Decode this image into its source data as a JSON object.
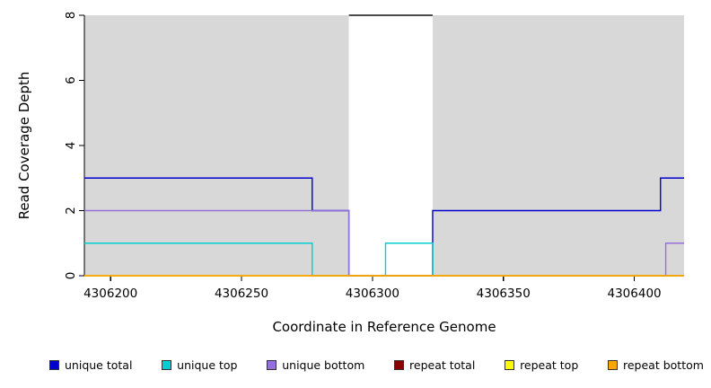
{
  "figure": {
    "background": "#ffffff"
  },
  "chart_data": {
    "type": "line",
    "title": "",
    "xlabel": "Coordinate in Reference Genome",
    "ylabel": "Read Coverage Depth",
    "xlim": [
      4306190,
      4306419
    ],
    "ylim": [
      0,
      8
    ],
    "x_ticks": [
      "4306200",
      "4306250",
      "4306300",
      "4306350",
      "4306400"
    ],
    "x_tick_values": [
      4306200,
      4306250,
      4306300,
      4306350,
      4306400
    ],
    "y_ticks": [
      "0",
      "2",
      "4",
      "6",
      "8"
    ],
    "y_tick_values": [
      0,
      2,
      4,
      6,
      8
    ],
    "grid": false,
    "legend_position": "bottom",
    "axis_color": "#000000",
    "panel": {
      "shaded_color": "#d8d8d8",
      "shaded_regions": [
        [
          4306190,
          4306291
        ],
        [
          4306323,
          4306419
        ]
      ],
      "gap_region": [
        4306291,
        4306323
      ],
      "gap_top_border_color": "#111111"
    },
    "series": [
      {
        "name": "unique total",
        "color": "#0000cd",
        "points": [
          [
            4306190,
            3
          ],
          [
            4306277,
            3
          ],
          [
            4306277,
            2
          ],
          [
            4306291,
            2
          ],
          [
            4306291,
            0
          ],
          [
            4306323,
            0
          ],
          [
            4306323,
            2
          ],
          [
            4306410,
            2
          ],
          [
            4306410,
            3
          ],
          [
            4306419,
            3
          ]
        ]
      },
      {
        "name": "unique top",
        "color": "#00ced1",
        "points": [
          [
            4306190,
            1
          ],
          [
            4306277,
            1
          ],
          [
            4306277,
            0
          ],
          [
            4306305,
            0
          ],
          [
            4306305,
            1
          ],
          [
            4306323,
            1
          ],
          [
            4306323,
            0
          ],
          [
            4306419,
            0
          ]
        ]
      },
      {
        "name": "unique bottom",
        "color": "#9370db",
        "points": [
          [
            4306190,
            2
          ],
          [
            4306291,
            2
          ],
          [
            4306291,
            0
          ],
          [
            4306412,
            0
          ],
          [
            4306412,
            1
          ],
          [
            4306419,
            1
          ]
        ]
      },
      {
        "name": "repeat total",
        "color": "#8b0000",
        "points": [
          [
            4306190,
            0
          ],
          [
            4306419,
            0
          ]
        ]
      },
      {
        "name": "repeat top",
        "color": "#ffff00",
        "points": [
          [
            4306190,
            0
          ],
          [
            4306419,
            0
          ]
        ]
      },
      {
        "name": "repeat bottom",
        "color": "#ffa500",
        "points": [
          [
            4306190,
            0
          ],
          [
            4306419,
            0
          ]
        ]
      }
    ]
  }
}
